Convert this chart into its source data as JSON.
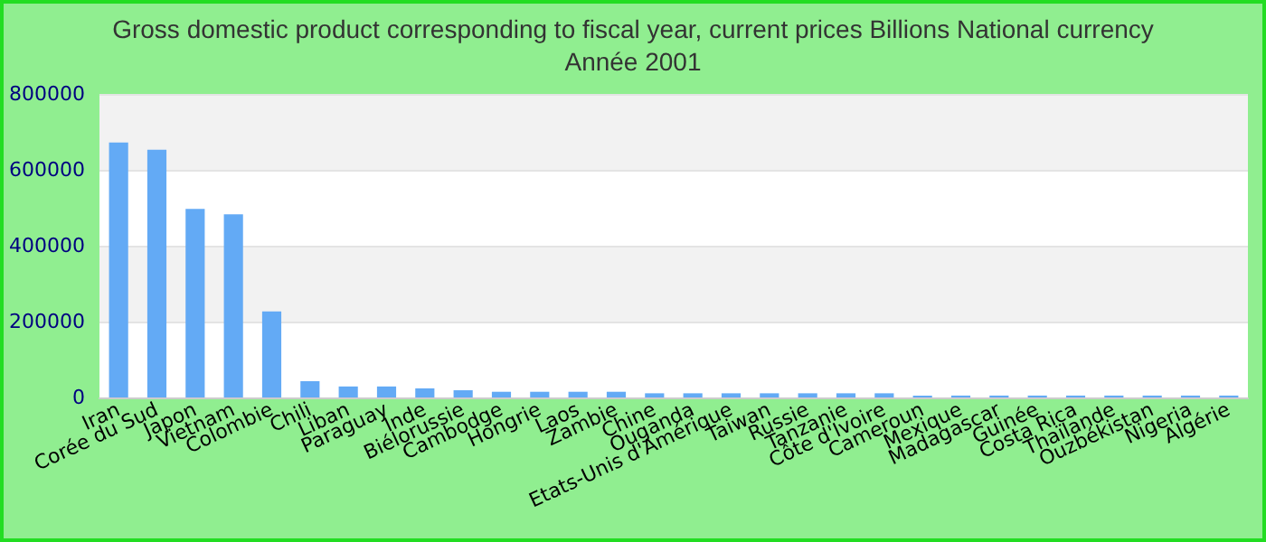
{
  "chart_data": {
    "type": "bar",
    "title": "Gross domestic product corresponding to fiscal year, current prices Billions National currency",
    "subtitle": "Année 2001",
    "categories": [
      "Iran",
      "Corée du Sud",
      "Japon",
      "Vietnam",
      "Colombie",
      "Chili",
      "Liban",
      "Paraguay",
      "Inde",
      "Biélorussie",
      "Cambodge",
      "Hongrie",
      "Laos",
      "Zambie",
      "Chine",
      "Ouganda",
      "Etats-Unis d'Amérique",
      "Taiwan",
      "Russie",
      "Tanzanie",
      "Côte d'Ivoire",
      "Cameroun",
      "Mexique",
      "Madagascar",
      "Guinée",
      "Costa Rica",
      "Thaïlande",
      "Ouzbékistan",
      "Nigeria",
      "Algérie"
    ],
    "values": [
      672000,
      653000,
      497000,
      483000,
      227000,
      43000,
      29000,
      29000,
      24000,
      19000,
      15000,
      15000,
      15000,
      15000,
      11000,
      11000,
      11000,
      11000,
      11000,
      11000,
      11000,
      5000,
      5000,
      5000,
      5000,
      5000,
      5000,
      5000,
      5000,
      5000
    ],
    "color": "#63aaf5",
    "ylim": [
      0,
      800000
    ],
    "yticks": [
      0,
      200000,
      400000,
      600000,
      800000
    ],
    "grid": true
  }
}
